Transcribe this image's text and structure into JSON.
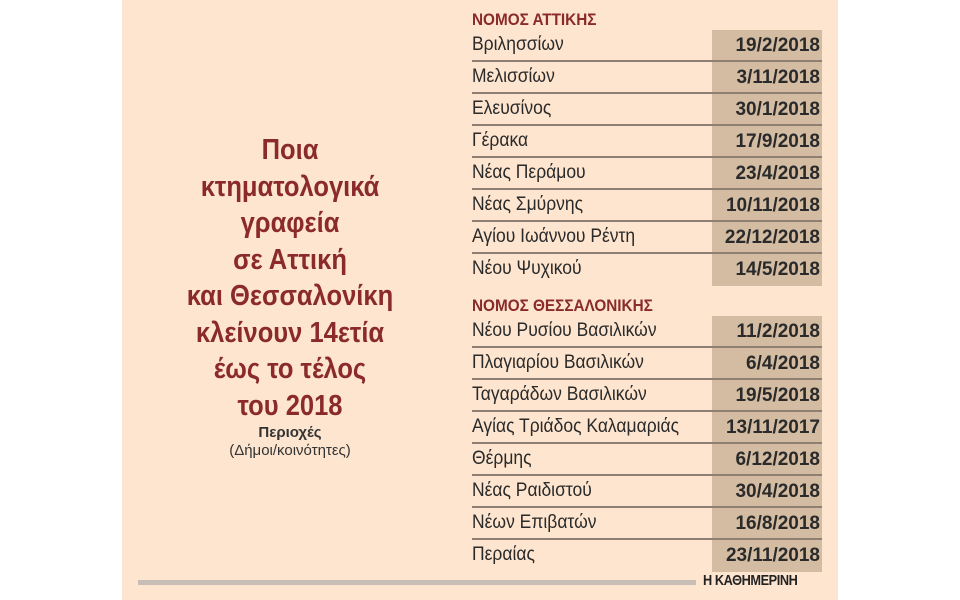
{
  "title_lines": [
    "Ποια",
    "κτηματολογικά",
    "γραφεία",
    "σε Αττική",
    "και Θεσσαλονίκη",
    "κλείνουν 14ετία",
    "έως το τέλος",
    "του 2018"
  ],
  "subtitle": {
    "bold": "Περιοχές",
    "normal": "(Δήμοι/κοινότητες)"
  },
  "sections": [
    {
      "title": "ΝΟΜΟΣ ΑΤΤΙΚΗΣ",
      "rows": [
        {
          "name": "Βριλησσίων",
          "date": "19/2/2018"
        },
        {
          "name": "Μελισσίων",
          "date": "3/11/2018"
        },
        {
          "name": "Ελευσίνος",
          "date": "30/1/2018"
        },
        {
          "name": "Γέρακα",
          "date": "17/9/2018"
        },
        {
          "name": "Νέας Περάμου",
          "date": "23/4/2018"
        },
        {
          "name": "Νέας Σμύρνης",
          "date": "10/11/2018"
        },
        {
          "name": "Αγίου Ιωάννου Ρέντη",
          "date": "22/12/2018"
        },
        {
          "name": "Νέου Ψυχικού",
          "date": "14/5/2018"
        }
      ]
    },
    {
      "title": "ΝΟΜΟΣ ΘΕΣΣΑΛΟΝΙΚΗΣ",
      "rows": [
        {
          "name": "Νέου Ρυσίου Βασιλικών",
          "date": "11/2/2018"
        },
        {
          "name": "Πλαγιαρίου Βασιλικών",
          "date": "6/4/2018"
        },
        {
          "name": "Ταγαράδων Βασιλικών",
          "date": "19/5/2018"
        },
        {
          "name": "Αγίας Τριάδος Καλαμαριάς",
          "date": "13/11/2017"
        },
        {
          "name": "Θέρμης",
          "date": "6/12/2018"
        },
        {
          "name": "Νέας Ραιδιστού",
          "date": "30/4/2018"
        },
        {
          "name": "Νέων Επιβατών",
          "date": "16/8/2018"
        },
        {
          "name": "Περαίας",
          "date": "23/11/2018"
        }
      ]
    }
  ],
  "logo": "Η ΚΑΘΗΜΕΡΙΝΗ",
  "colors": {
    "background": "#fde5cf",
    "accent": "#8a2a2b",
    "date_cell": "#d4bca3"
  }
}
